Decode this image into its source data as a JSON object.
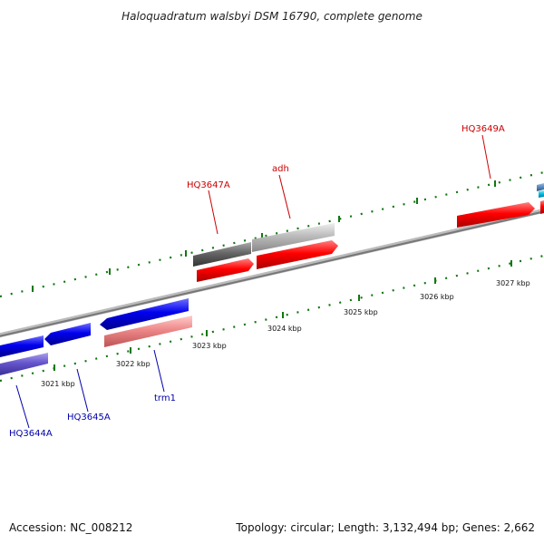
{
  "title": "Haloquadratum walsbyi DSM 16790, complete genome",
  "footer": {
    "accession": "Accession: NC_008212",
    "summary": "Topology: circular; Length: 3,132,494 bp; Genes: 2,662"
  },
  "ticks": [
    "3021 kbp",
    "3022 kbp",
    "3023 kbp",
    "3024 kbp",
    "3025 kbp",
    "3026 kbp",
    "3027 kbp"
  ],
  "labels": {
    "hq3647a": "HQ3647A",
    "adh": "adh",
    "hq3649a": "HQ3649A",
    "trm1": "trm1",
    "hq3645a": "HQ3645A",
    "hq3644a": "HQ3644A"
  },
  "colors": {
    "forward_cds": "#ff0000",
    "forward_gray_dark": "#666666",
    "forward_gray_light": "#bbbbbb",
    "reverse_cds": "#0000ee",
    "reverse_pink": "#ee8888",
    "reverse_purple": "#6655cc",
    "backbone": "#888888",
    "ticks": "#117711",
    "label_forward": "#cc0000",
    "label_reverse": "#0000aa"
  }
}
